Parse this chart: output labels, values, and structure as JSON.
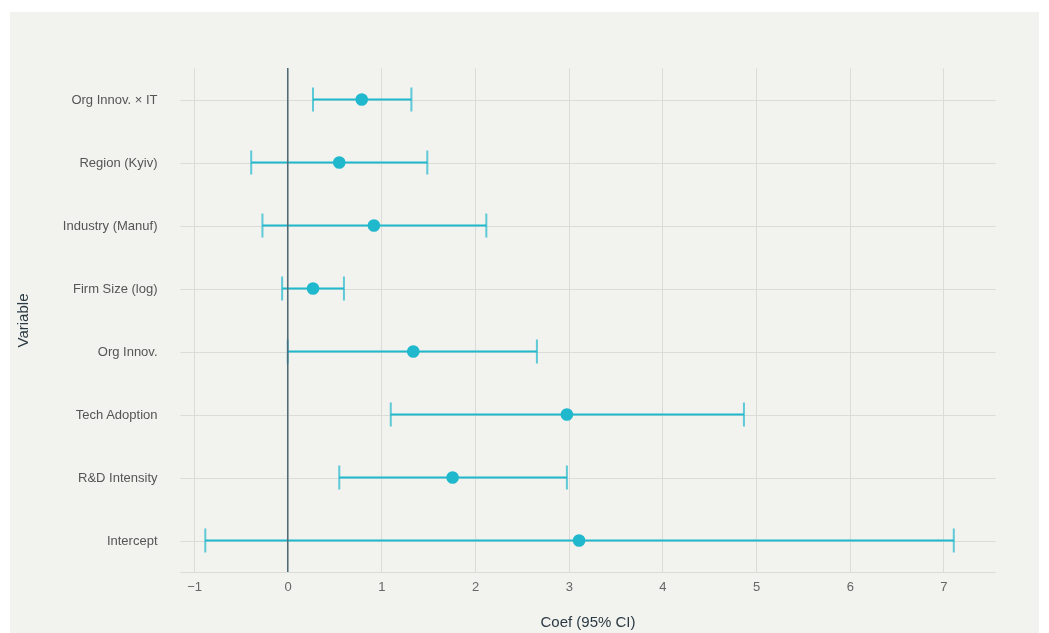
{
  "chart_data": {
    "type": "scatter",
    "orientation": "horizontal",
    "xlabel": "Coef (95% CI)",
    "ylabel": "Variable",
    "categories": [
      "Org Innov. × IT",
      "Region (Kyiv)",
      "Industry (Manuf)",
      "Firm Size (log)",
      "Org Innov.",
      "Tech Adoption",
      "R&D Intensity",
      "Intercept"
    ],
    "series": [
      {
        "color": "#1fb8cd",
        "values": [
          0.79,
          0.55,
          0.92,
          0.27,
          1.34,
          2.98,
          1.76,
          3.11
        ],
        "errors": [
          [
            0.27,
            1.32
          ],
          [
            -0.39,
            1.49
          ],
          [
            -0.27,
            2.12
          ],
          [
            -0.06,
            0.6
          ],
          [
            0.0,
            2.66
          ],
          [
            1.1,
            4.87
          ],
          [
            0.55,
            2.98
          ],
          [
            -0.88,
            7.11
          ]
        ]
      }
    ],
    "xlim": [
      -1.15,
      7.55
    ],
    "xticks": [
      {
        "value": -1,
        "label": "−1"
      },
      0,
      1,
      2,
      3,
      4,
      5,
      6,
      7
    ],
    "ref_lines": [
      {
        "axis": "x",
        "value": 0,
        "color": "#4f6b78"
      }
    ],
    "grid": true,
    "marker": "circle"
  }
}
